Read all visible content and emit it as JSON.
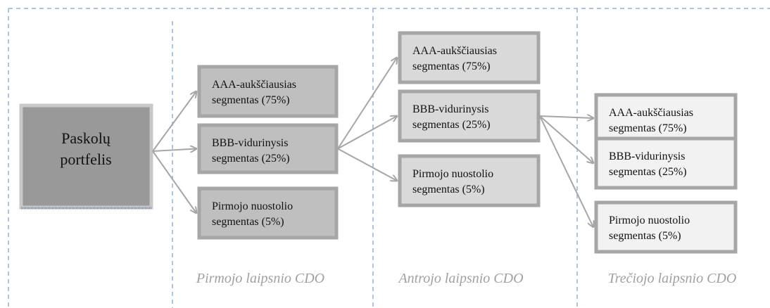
{
  "source": {
    "lines": [
      "Paskolų",
      "portfelis"
    ]
  },
  "stages": [
    {
      "label": "Pirmojo laipsnio CDO",
      "tranches": [
        {
          "lines": [
            "AAA-aukščiausias",
            "segmentas (75%)"
          ]
        },
        {
          "lines": [
            "BBB-vidurinysis",
            "segmentas (25%)"
          ]
        },
        {
          "lines": [
            "Pirmojo nuostolio",
            "segmentas (5%)"
          ]
        }
      ]
    },
    {
      "label": "Antrojo laipsnio CDO",
      "tranches": [
        {
          "lines": [
            "AAA-aukščiausias",
            "segmentas (75%)"
          ]
        },
        {
          "lines": [
            "BBB-vidurinysis",
            "segmentas (25%)"
          ]
        },
        {
          "lines": [
            "Pirmojo nuostolio",
            "segmentas (5%)"
          ]
        }
      ]
    },
    {
      "label": "Trečiojo laipsnio CDO",
      "tranches": [
        {
          "lines": [
            "AAA-aukščiausias",
            "segmentas (75%)"
          ]
        },
        {
          "lines": [
            "BBB-vidurinysis",
            "segmentas (25%)"
          ]
        },
        {
          "lines": [
            "Pirmojo nuostolio",
            "segmentas (5%)"
          ]
        }
      ]
    }
  ]
}
